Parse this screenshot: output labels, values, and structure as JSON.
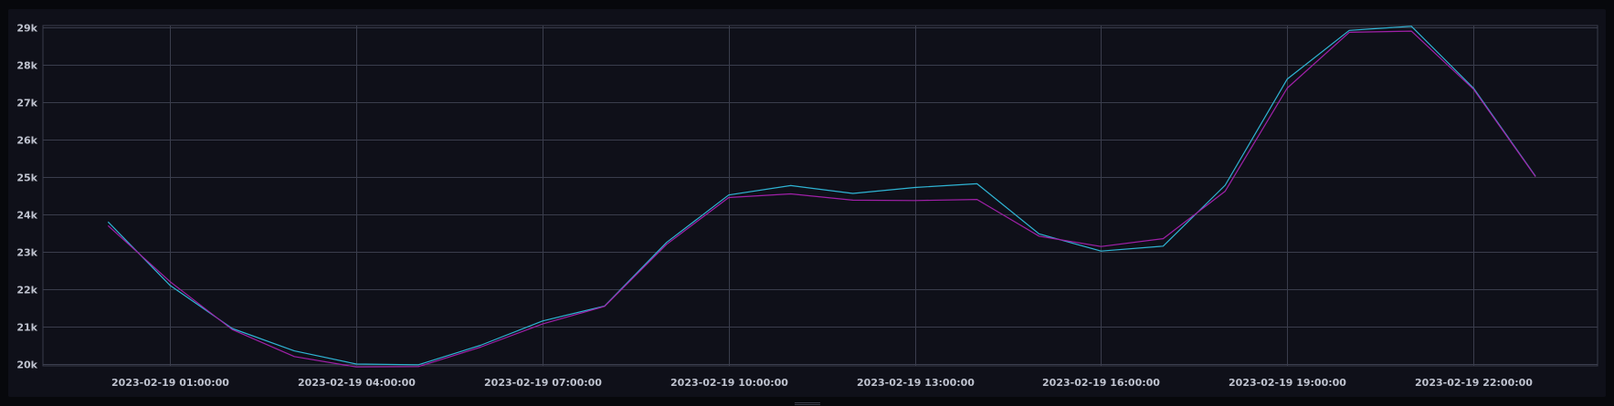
{
  "chart_data": {
    "type": "line",
    "title": "",
    "xlabel": "",
    "ylabel": "",
    "ylim": [
      19950,
      29050
    ],
    "y_ticks": [
      20000,
      21000,
      22000,
      23000,
      24000,
      25000,
      26000,
      27000,
      28000,
      29000
    ],
    "y_tick_labels": [
      "20k",
      "21k",
      "22k",
      "23k",
      "24k",
      "25k",
      "26k",
      "27k",
      "28k",
      "29k"
    ],
    "x_ticks": [
      1,
      4,
      7,
      10,
      13,
      16,
      19,
      22
    ],
    "x_tick_labels": [
      "2023-02-19 01:00:00",
      "2023-02-19 04:00:00",
      "2023-02-19 07:00:00",
      "2023-02-19 10:00:00",
      "2023-02-19 13:00:00",
      "2023-02-19 16:00:00",
      "2023-02-19 19:00:00",
      "2023-02-19 22:00:00"
    ],
    "xlim": [
      -1.05,
      24.0
    ],
    "grid": true,
    "x": [
      0,
      1,
      2,
      3,
      4,
      5,
      6,
      7,
      8,
      9,
      10,
      11,
      12,
      13,
      14,
      15,
      16,
      17,
      18,
      19,
      20,
      21,
      22,
      23
    ],
    "series": [
      {
        "color": "#2fb4d4",
        "values": [
          23800,
          22100,
          20950,
          20350,
          20000,
          19980,
          20500,
          21150,
          21550,
          23250,
          24520,
          24770,
          24560,
          24720,
          24820,
          23480,
          23020,
          23150,
          24780,
          27620,
          28920,
          29030,
          27380,
          25020
        ]
      },
      {
        "color": "#a020a8",
        "values": [
          23700,
          22200,
          20920,
          20200,
          19920,
          19930,
          20450,
          21070,
          21540,
          23200,
          24450,
          24550,
          24380,
          24370,
          24400,
          23420,
          23140,
          23350,
          24620,
          27380,
          28870,
          28900,
          27350,
          25010
        ]
      }
    ],
    "legend": "bottom"
  }
}
